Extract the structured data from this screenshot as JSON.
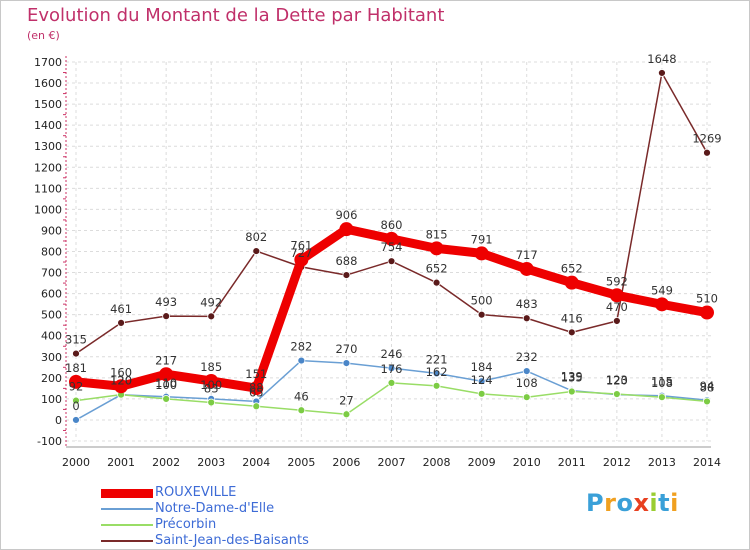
{
  "header": {
    "title": "Evolution du Montant de la Dette par Habitant",
    "unit": "(en €)"
  },
  "logo": {
    "letters": [
      "P",
      "r",
      "o",
      "x",
      "i",
      "t",
      "i"
    ],
    "colors": [
      "#3aa0d8",
      "#f0a020",
      "#3aa0d8",
      "#e84020",
      "#9acd32",
      "#3aa0d8",
      "#f0a020"
    ]
  },
  "chart_data": {
    "type": "line",
    "title": "Evolution du Montant de la Dette par Habitant",
    "ylabel": "(en €)",
    "xlabel": "",
    "categories": [
      "2000",
      "2001",
      "2002",
      "2003",
      "2004",
      "2005",
      "2006",
      "2007",
      "2008",
      "2009",
      "2010",
      "2011",
      "2012",
      "2013",
      "2014"
    ],
    "ylim": [
      -100,
      1700
    ],
    "yticks": [
      "-100",
      "0",
      "100",
      "200",
      "300",
      "400",
      "500",
      "600",
      "700",
      "800",
      "900",
      "1000",
      "1100",
      "1200",
      "1300",
      "1400",
      "1500",
      "1600",
      "1700"
    ],
    "grid": true,
    "legend": "bottom-left",
    "series": [
      {
        "name": "ROUXEVILLE",
        "color": "#ee0000",
        "values": [
          181,
          160,
          217,
          185,
          151,
          761,
          906,
          860,
          815,
          791,
          717,
          652,
          592,
          549,
          510
        ]
      },
      {
        "name": "Notre-Dame-d'Elle",
        "color": "#6a9fd4",
        "values": [
          0,
          120,
          110,
          100,
          88,
          282,
          270,
          246,
          221,
          184,
          232,
          139,
          120,
          115,
          94
        ]
      },
      {
        "name": "Précorbin",
        "color": "#99dd66",
        "values": [
          92,
          120,
          100,
          83,
          65,
          46,
          27,
          176,
          162,
          124,
          108,
          135,
          123,
          108,
          88
        ]
      },
      {
        "name": "Saint-Jean-des-Baisants",
        "color": "#7a2a2a",
        "values": [
          315,
          461,
          493,
          492,
          802,
          727,
          688,
          754,
          652,
          500,
          483,
          416,
          470,
          1648,
          1269
        ]
      }
    ]
  }
}
